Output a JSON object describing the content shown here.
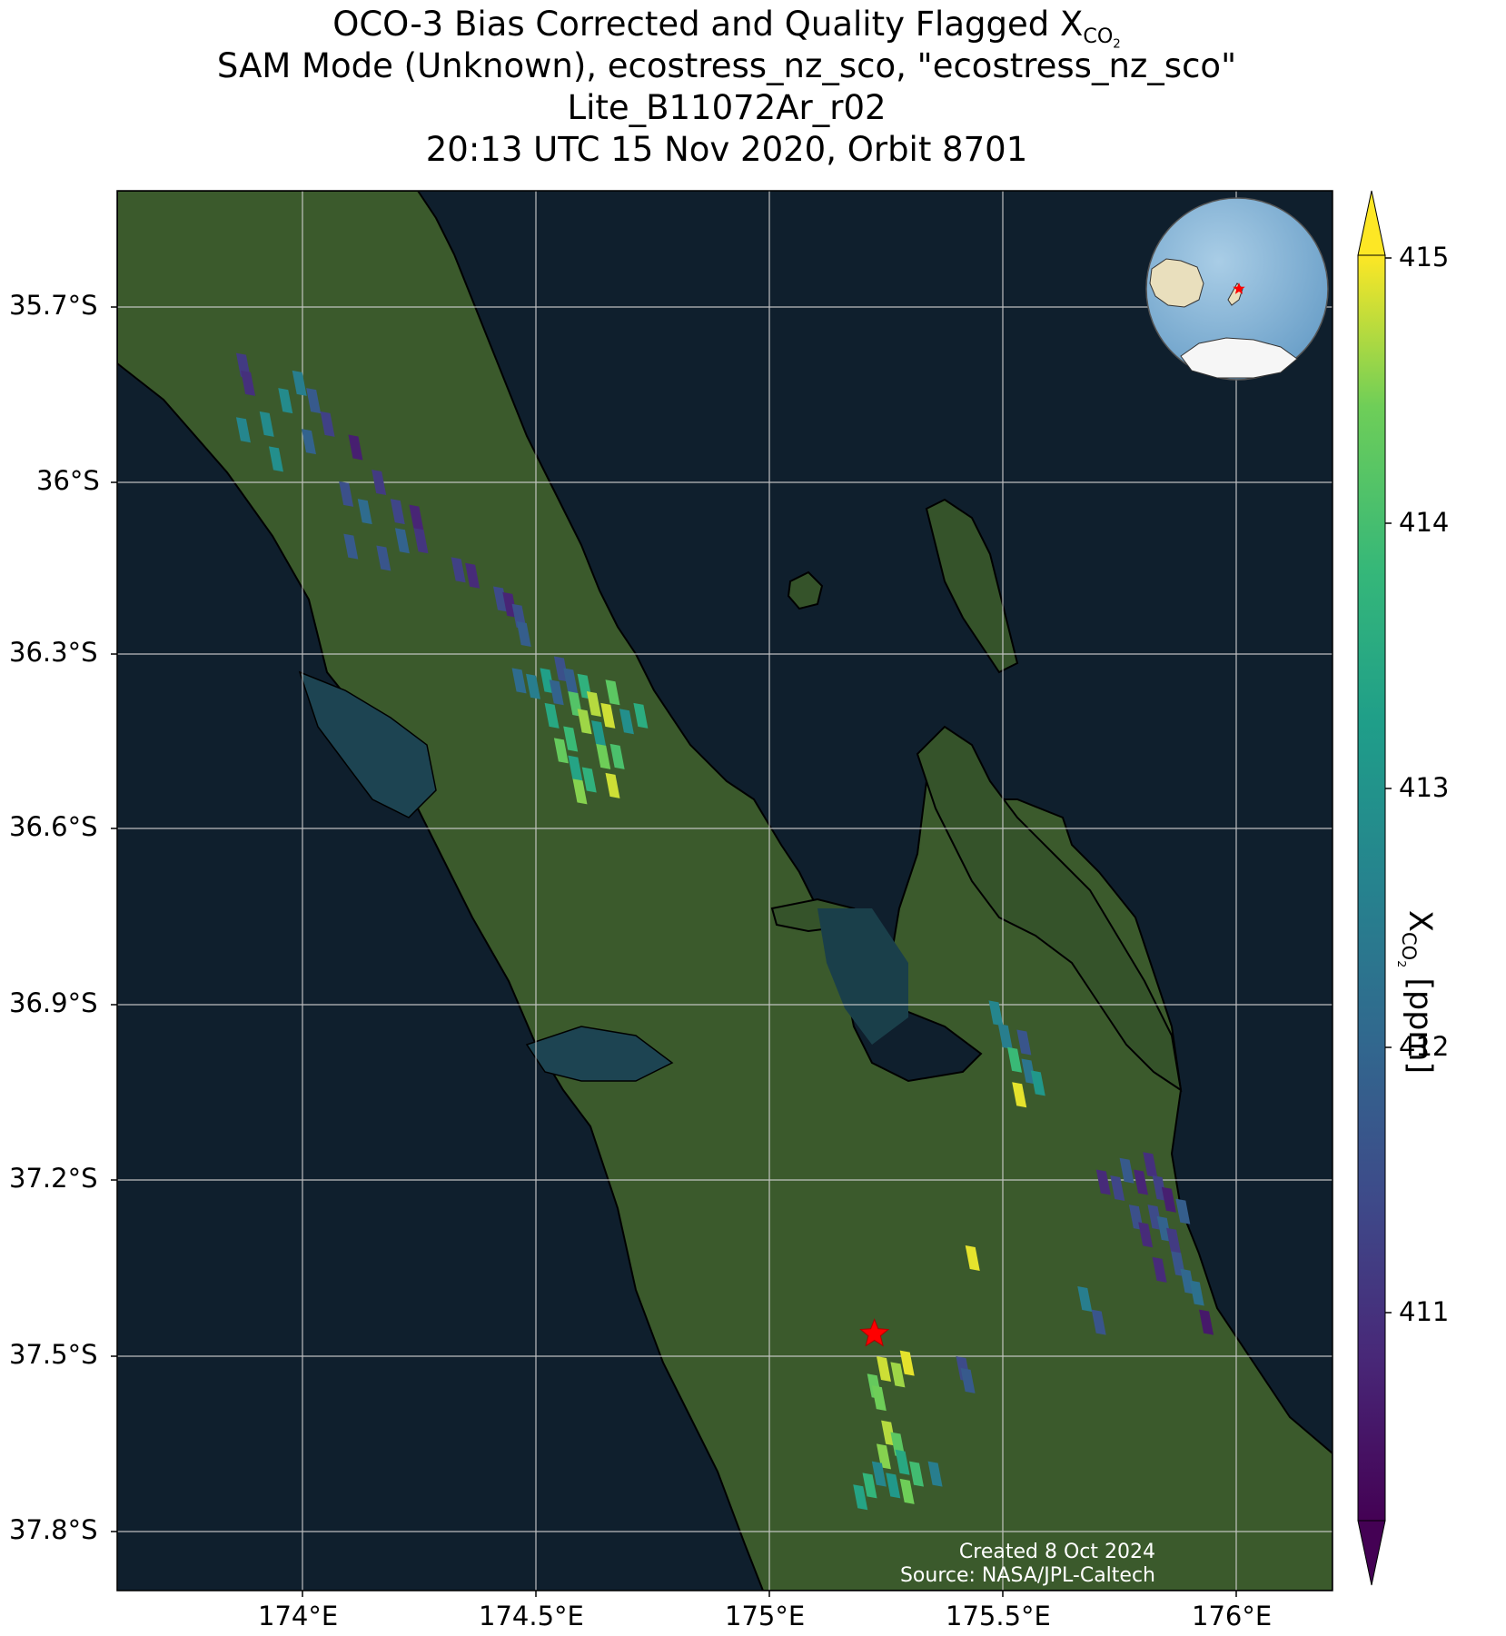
{
  "title": {
    "line1_main": "OCO-3 Bias Corrected and Quality Flagged X",
    "line1_sub": "CO",
    "line1_subsub": "2",
    "line2": "SAM Mode (Unknown), ecostress_nz_sco, \"ecostress_nz_sco\"",
    "line3": "Lite_B11072Ar_r02",
    "line4": "20:13 UTC 15 Nov 2020, Orbit 8701"
  },
  "axes": {
    "lat_ticks": [
      "35.7°S",
      "36°S",
      "36.3°S",
      "36.6°S",
      "36.9°S",
      "37.2°S",
      "37.5°S",
      "37.8°S"
    ],
    "lon_ticks": [
      "174°E",
      "174.5°E",
      "175°E",
      "175.5°E",
      "176°E"
    ],
    "lat_range": [
      -37.9,
      -35.5
    ],
    "lon_range": [
      173.6,
      176.2
    ]
  },
  "colorbar": {
    "label_main": "X",
    "label_sub": "CO",
    "label_subsub": "2",
    "label_unit": " [ppm]",
    "ticks": [
      "415",
      "414",
      "413",
      "412",
      "411"
    ],
    "range": [
      410.2,
      415.2
    ],
    "extend": "both",
    "colormap": "viridis"
  },
  "footer": {
    "created": "Created 8 Oct 2024",
    "source": "Source: NASA/JPL-Caltech"
  },
  "target_marker": {
    "lon": 175.22,
    "lat": -37.46,
    "color": "#ff0000",
    "shape": "star"
  },
  "map_style": {
    "ocean": "#0f1f2d",
    "land": "#3b5a2c",
    "coastline": "#000000",
    "grid": "#d0d0d0"
  },
  "soundings": [
    {
      "lon": 173.87,
      "lat": -35.8,
      "v": 411.2
    },
    {
      "lon": 173.88,
      "lat": -35.83,
      "v": 411.0
    },
    {
      "lon": 173.87,
      "lat": -35.91,
      "v": 412.8
    },
    {
      "lon": 173.92,
      "lat": -35.9,
      "v": 412.9
    },
    {
      "lon": 173.96,
      "lat": -35.86,
      "v": 412.9
    },
    {
      "lon": 173.99,
      "lat": -35.83,
      "v": 412.6
    },
    {
      "lon": 173.94,
      "lat": -35.96,
      "v": 413.0
    },
    {
      "lon": 174.02,
      "lat": -35.86,
      "v": 411.8
    },
    {
      "lon": 174.01,
      "lat": -35.93,
      "v": 412.0
    },
    {
      "lon": 174.05,
      "lat": -35.9,
      "v": 411.3
    },
    {
      "lon": 174.11,
      "lat": -35.94,
      "v": 410.7
    },
    {
      "lon": 174.16,
      "lat": -36.0,
      "v": 411.2
    },
    {
      "lon": 174.09,
      "lat": -36.02,
      "v": 411.6
    },
    {
      "lon": 174.13,
      "lat": -36.05,
      "v": 412.2
    },
    {
      "lon": 174.1,
      "lat": -36.11,
      "v": 411.8
    },
    {
      "lon": 174.2,
      "lat": -36.05,
      "v": 411.4
    },
    {
      "lon": 174.21,
      "lat": -36.1,
      "v": 412.0
    },
    {
      "lon": 174.24,
      "lat": -36.06,
      "v": 410.8
    },
    {
      "lon": 174.25,
      "lat": -36.1,
      "v": 411.1
    },
    {
      "lon": 174.17,
      "lat": -36.13,
      "v": 411.7
    },
    {
      "lon": 174.33,
      "lat": -36.15,
      "v": 411.3
    },
    {
      "lon": 174.36,
      "lat": -36.16,
      "v": 410.9
    },
    {
      "lon": 174.42,
      "lat": -36.2,
      "v": 411.5
    },
    {
      "lon": 174.44,
      "lat": -36.21,
      "v": 410.8
    },
    {
      "lon": 174.46,
      "lat": -36.23,
      "v": 411.6
    },
    {
      "lon": 174.47,
      "lat": -36.26,
      "v": 411.9
    },
    {
      "lon": 174.46,
      "lat": -36.34,
      "v": 412.2
    },
    {
      "lon": 174.49,
      "lat": -36.35,
      "v": 412.6
    },
    {
      "lon": 174.52,
      "lat": -36.34,
      "v": 413.4
    },
    {
      "lon": 174.54,
      "lat": -36.36,
      "v": 412.0
    },
    {
      "lon": 174.55,
      "lat": -36.32,
      "v": 411.6
    },
    {
      "lon": 174.53,
      "lat": -36.4,
      "v": 413.6
    },
    {
      "lon": 174.57,
      "lat": -36.34,
      "v": 411.9
    },
    {
      "lon": 174.58,
      "lat": -36.38,
      "v": 414.3
    },
    {
      "lon": 174.6,
      "lat": -36.35,
      "v": 413.8
    },
    {
      "lon": 174.6,
      "lat": -36.41,
      "v": 414.8
    },
    {
      "lon": 174.57,
      "lat": -36.44,
      "v": 414.0
    },
    {
      "lon": 174.55,
      "lat": -36.46,
      "v": 414.5
    },
    {
      "lon": 174.58,
      "lat": -36.49,
      "v": 413.5
    },
    {
      "lon": 174.62,
      "lat": -36.38,
      "v": 414.9
    },
    {
      "lon": 174.63,
      "lat": -36.43,
      "v": 413.2
    },
    {
      "lon": 174.65,
      "lat": -36.4,
      "v": 415.0
    },
    {
      "lon": 174.66,
      "lat": -36.36,
      "v": 414.4
    },
    {
      "lon": 174.64,
      "lat": -36.47,
      "v": 414.6
    },
    {
      "lon": 174.61,
      "lat": -36.51,
      "v": 413.8
    },
    {
      "lon": 174.66,
      "lat": -36.52,
      "v": 415.0
    },
    {
      "lon": 174.67,
      "lat": -36.47,
      "v": 414.2
    },
    {
      "lon": 174.69,
      "lat": -36.41,
      "v": 413.0
    },
    {
      "lon": 174.72,
      "lat": -36.4,
      "v": 413.7
    },
    {
      "lon": 174.59,
      "lat": -36.53,
      "v": 414.7
    },
    {
      "lon": 175.48,
      "lat": -36.91,
      "v": 412.8
    },
    {
      "lon": 175.5,
      "lat": -36.95,
      "v": 412.6
    },
    {
      "lon": 175.52,
      "lat": -36.99,
      "v": 414.0
    },
    {
      "lon": 175.54,
      "lat": -36.96,
      "v": 411.7
    },
    {
      "lon": 175.55,
      "lat": -37.01,
      "v": 412.4
    },
    {
      "lon": 175.53,
      "lat": -37.05,
      "v": 415.1
    },
    {
      "lon": 175.57,
      "lat": -37.03,
      "v": 413.2
    },
    {
      "lon": 175.22,
      "lat": -37.55,
      "v": 414.5
    },
    {
      "lon": 175.24,
      "lat": -37.52,
      "v": 415.0
    },
    {
      "lon": 175.27,
      "lat": -37.53,
      "v": 414.8
    },
    {
      "lon": 175.29,
      "lat": -37.51,
      "v": 415.1
    },
    {
      "lon": 175.23,
      "lat": -37.57,
      "v": 414.6
    },
    {
      "lon": 175.41,
      "lat": -37.52,
      "v": 411.5
    },
    {
      "lon": 175.42,
      "lat": -37.54,
      "v": 411.8
    },
    {
      "lon": 175.43,
      "lat": -37.33,
      "v": 415.1
    },
    {
      "lon": 175.25,
      "lat": -37.63,
      "v": 414.9
    },
    {
      "lon": 175.27,
      "lat": -37.65,
      "v": 414.4
    },
    {
      "lon": 175.24,
      "lat": -37.67,
      "v": 414.7
    },
    {
      "lon": 175.28,
      "lat": -37.68,
      "v": 413.6
    },
    {
      "lon": 175.23,
      "lat": -37.7,
      "v": 412.8
    },
    {
      "lon": 175.21,
      "lat": -37.72,
      "v": 413.9
    },
    {
      "lon": 175.26,
      "lat": -37.72,
      "v": 413.2
    },
    {
      "lon": 175.31,
      "lat": -37.7,
      "v": 414.1
    },
    {
      "lon": 175.35,
      "lat": -37.7,
      "v": 412.6
    },
    {
      "lon": 175.29,
      "lat": -37.73,
      "v": 414.6
    },
    {
      "lon": 175.19,
      "lat": -37.74,
      "v": 413.5
    },
    {
      "lon": 175.67,
      "lat": -37.4,
      "v": 412.6
    },
    {
      "lon": 175.7,
      "lat": -37.44,
      "v": 411.7
    },
    {
      "lon": 175.71,
      "lat": -37.2,
      "v": 410.9
    },
    {
      "lon": 175.74,
      "lat": -37.21,
      "v": 411.4
    },
    {
      "lon": 175.76,
      "lat": -37.18,
      "v": 411.8
    },
    {
      "lon": 175.79,
      "lat": -37.2,
      "v": 410.8
    },
    {
      "lon": 175.81,
      "lat": -37.17,
      "v": 411.0
    },
    {
      "lon": 175.83,
      "lat": -37.21,
      "v": 411.3
    },
    {
      "lon": 175.85,
      "lat": -37.23,
      "v": 410.7
    },
    {
      "lon": 175.78,
      "lat": -37.26,
      "v": 411.6
    },
    {
      "lon": 175.8,
      "lat": -37.29,
      "v": 410.9
    },
    {
      "lon": 175.82,
      "lat": -37.26,
      "v": 411.5
    },
    {
      "lon": 175.84,
      "lat": -37.28,
      "v": 412.0
    },
    {
      "lon": 175.86,
      "lat": -37.3,
      "v": 411.2
    },
    {
      "lon": 175.88,
      "lat": -37.25,
      "v": 411.9
    },
    {
      "lon": 175.87,
      "lat": -37.34,
      "v": 411.7
    },
    {
      "lon": 175.83,
      "lat": -37.35,
      "v": 410.9
    },
    {
      "lon": 175.89,
      "lat": -37.37,
      "v": 412.1
    },
    {
      "lon": 175.91,
      "lat": -37.39,
      "v": 412.3
    },
    {
      "lon": 175.93,
      "lat": -37.44,
      "v": 410.6
    }
  ]
}
